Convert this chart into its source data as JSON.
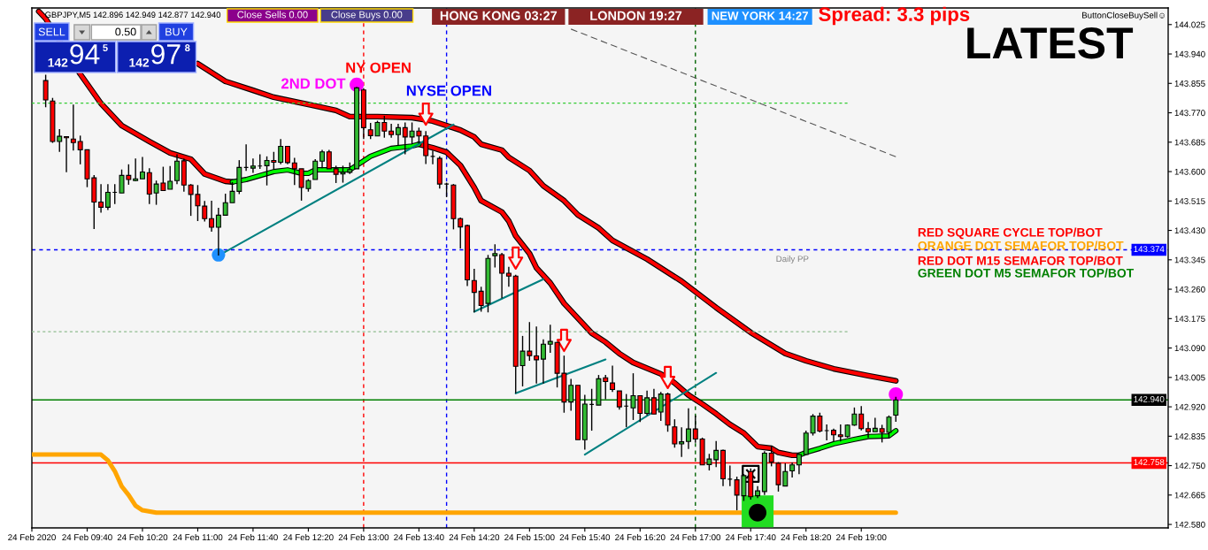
{
  "chart_data": {
    "type": "candlestick",
    "title": "GBPJPY,M5 142.896 142.949 142.877 142.940",
    "x": [
      "2020-02-24T09:10",
      "2020-02-24T09:15",
      "2020-02-24T09:20",
      "2020-02-24T09:25",
      "2020-02-24T09:30",
      "2020-02-24T09:35",
      "2020-02-24T09:40",
      "2020-02-24T09:45",
      "2020-02-24T09:50",
      "2020-02-24T09:55",
      "2020-02-24T10:00",
      "2020-02-24T10:05",
      "2020-02-24T10:10",
      "2020-02-24T10:15",
      "2020-02-24T10:20",
      "2020-02-24T10:25",
      "2020-02-24T10:30",
      "2020-02-24T10:35",
      "2020-02-24T10:40",
      "2020-02-24T10:45",
      "2020-02-24T10:50",
      "2020-02-24T10:55",
      "2020-02-24T11:00",
      "2020-02-24T11:05",
      "2020-02-24T11:10",
      "2020-02-24T11:15",
      "2020-02-24T11:20",
      "2020-02-24T11:25",
      "2020-02-24T11:30",
      "2020-02-24T11:35",
      "2020-02-24T11:40",
      "2020-02-24T11:45",
      "2020-02-24T11:50",
      "2020-02-24T11:55",
      "2020-02-24T12:00",
      "2020-02-24T12:05",
      "2020-02-24T12:10",
      "2020-02-24T12:15",
      "2020-02-24T12:20",
      "2020-02-24T12:25",
      "2020-02-24T12:30",
      "2020-02-24T12:35",
      "2020-02-24T12:40",
      "2020-02-24T12:45",
      "2020-02-24T12:50",
      "2020-02-24T12:55",
      "2020-02-24T13:00",
      "2020-02-24T13:05",
      "2020-02-24T13:10",
      "2020-02-24T13:15",
      "2020-02-24T13:20",
      "2020-02-24T13:25",
      "2020-02-24T13:30",
      "2020-02-24T13:35",
      "2020-02-24T13:40",
      "2020-02-24T13:45",
      "2020-02-24T13:50",
      "2020-02-24T13:55",
      "2020-02-24T14:00",
      "2020-02-24T14:05",
      "2020-02-24T14:10",
      "2020-02-24T14:15",
      "2020-02-24T14:20",
      "2020-02-24T14:25",
      "2020-02-24T14:30",
      "2020-02-24T14:35",
      "2020-02-24T14:40",
      "2020-02-24T14:45",
      "2020-02-24T14:50",
      "2020-02-24T14:55",
      "2020-02-24T15:00",
      "2020-02-24T15:05",
      "2020-02-24T15:10",
      "2020-02-24T15:15",
      "2020-02-24T15:20",
      "2020-02-24T15:25",
      "2020-02-24T15:30",
      "2020-02-24T15:35",
      "2020-02-24T15:40",
      "2020-02-24T15:45",
      "2020-02-24T15:50",
      "2020-02-24T15:55",
      "2020-02-24T16:00",
      "2020-02-24T16:05",
      "2020-02-24T16:10",
      "2020-02-24T16:15",
      "2020-02-24T16:20",
      "2020-02-24T16:25",
      "2020-02-24T16:30",
      "2020-02-24T16:35",
      "2020-02-24T16:40",
      "2020-02-24T16:45",
      "2020-02-24T16:50",
      "2020-02-24T16:55",
      "2020-02-24T17:00",
      "2020-02-24T17:05",
      "2020-02-24T17:10",
      "2020-02-24T17:15",
      "2020-02-24T17:20",
      "2020-02-24T17:25",
      "2020-02-24T17:30",
      "2020-02-24T17:35",
      "2020-02-24T17:40",
      "2020-02-24T17:45",
      "2020-02-24T17:50",
      "2020-02-24T17:55",
      "2020-02-24T18:00",
      "2020-02-24T18:05",
      "2020-02-24T18:10",
      "2020-02-24T18:15",
      "2020-02-24T18:20",
      "2020-02-24T18:25",
      "2020-02-24T18:30",
      "2020-02-24T18:35",
      "2020-02-24T18:40",
      "2020-02-24T18:45",
      "2020-02-24T18:50",
      "2020-02-24T18:55",
      "2020-02-24T19:00",
      "2020-02-24T19:05",
      "2020-02-24T19:10",
      "2020-02-24T19:15",
      "2020-02-24T19:20",
      "2020-02-24T19:25"
    ],
    "ohlc": [
      [
        143.863,
        143.88,
        143.786,
        143.807
      ],
      [
        143.804,
        143.813,
        143.683,
        143.687
      ],
      [
        143.687,
        143.723,
        143.657,
        143.702
      ],
      [
        143.701,
        143.702,
        143.598,
        143.698
      ],
      [
        143.694,
        143.794,
        143.661,
        143.684
      ],
      [
        143.687,
        143.704,
        143.621,
        143.663
      ],
      [
        143.663,
        143.663,
        143.555,
        143.579
      ],
      [
        143.582,
        143.59,
        143.434,
        143.512
      ],
      [
        143.512,
        143.564,
        143.481,
        143.497
      ],
      [
        143.497,
        143.564,
        143.489,
        143.54
      ],
      [
        143.54,
        143.564,
        143.506,
        143.54
      ],
      [
        143.538,
        143.606,
        143.538,
        143.589
      ],
      [
        143.589,
        143.621,
        143.562,
        143.577
      ],
      [
        143.574,
        143.638,
        143.572,
        143.579
      ],
      [
        143.579,
        143.642,
        143.579,
        143.599
      ],
      [
        143.597,
        143.61,
        143.506,
        143.535
      ],
      [
        143.538,
        143.574,
        143.504,
        143.564
      ],
      [
        143.567,
        143.614,
        143.545,
        143.545
      ],
      [
        143.549,
        143.616,
        143.549,
        143.572
      ],
      [
        143.574,
        143.65,
        143.564,
        143.63
      ],
      [
        143.631,
        143.638,
        143.542,
        143.561
      ],
      [
        143.561,
        143.564,
        143.472,
        143.534
      ],
      [
        143.534,
        143.561,
        143.457,
        143.501
      ],
      [
        143.5,
        143.515,
        143.456,
        143.464
      ],
      [
        143.464,
        143.516,
        143.426,
        143.439
      ],
      [
        143.439,
        143.495,
        143.357,
        143.474
      ],
      [
        143.474,
        143.536,
        143.474,
        143.51
      ],
      [
        143.51,
        143.57,
        143.51,
        143.543
      ],
      [
        143.543,
        143.633,
        143.535,
        143.612
      ],
      [
        143.612,
        143.679,
        143.602,
        143.612
      ],
      [
        143.61,
        143.638,
        143.596,
        143.616
      ],
      [
        143.616,
        143.65,
        143.608,
        143.616
      ],
      [
        143.617,
        143.644,
        143.56,
        143.632
      ],
      [
        143.632,
        143.657,
        143.606,
        143.627
      ],
      [
        143.627,
        143.694,
        143.621,
        143.673
      ],
      [
        143.673,
        143.673,
        143.621,
        143.626
      ],
      [
        143.625,
        143.64,
        143.561,
        143.608
      ],
      [
        143.608,
        143.608,
        143.516,
        143.554
      ],
      [
        143.551,
        143.578,
        143.542,
        143.574
      ],
      [
        143.577,
        143.636,
        143.577,
        143.63
      ],
      [
        143.63,
        143.663,
        143.61,
        143.657
      ],
      [
        143.657,
        143.663,
        143.608,
        143.608
      ],
      [
        143.608,
        143.617,
        143.567,
        143.592
      ],
      [
        143.593,
        143.617,
        143.568,
        143.598
      ],
      [
        143.598,
        143.626,
        143.593,
        143.606
      ],
      [
        143.608,
        143.845,
        143.608,
        143.842
      ],
      [
        143.836,
        143.841,
        143.694,
        143.727
      ],
      [
        143.721,
        143.741,
        143.694,
        143.704
      ],
      [
        143.703,
        143.747,
        143.703,
        143.742
      ],
      [
        143.742,
        143.761,
        143.698,
        143.717
      ],
      [
        143.717,
        143.738,
        143.698,
        143.707
      ],
      [
        143.707,
        143.738,
        143.677,
        143.727
      ],
      [
        143.727,
        143.742,
        143.65,
        143.7
      ],
      [
        143.7,
        143.742,
        143.679,
        143.717
      ],
      [
        143.717,
        143.727,
        143.681,
        143.703
      ],
      [
        143.703,
        143.717,
        143.622,
        143.646
      ],
      [
        143.644,
        143.661,
        143.621,
        143.644
      ],
      [
        143.638,
        143.644,
        143.551,
        143.564
      ],
      [
        143.564,
        143.568,
        143.526,
        143.564
      ],
      [
        143.561,
        143.564,
        143.433,
        143.464
      ],
      [
        143.464,
        143.467,
        143.378,
        143.44
      ],
      [
        143.444,
        143.447,
        143.269,
        143.287
      ],
      [
        143.285,
        143.319,
        143.193,
        143.251
      ],
      [
        143.254,
        143.267,
        143.195,
        143.213
      ],
      [
        143.219,
        143.359,
        143.193,
        143.349
      ],
      [
        143.357,
        143.39,
        143.323,
        143.363
      ],
      [
        143.36,
        143.365,
        143.234,
        143.306
      ],
      [
        143.306,
        143.325,
        143.267,
        143.298
      ],
      [
        143.298,
        143.302,
        142.959,
        143.037
      ],
      [
        143.039,
        143.125,
        142.979,
        143.081
      ],
      [
        143.081,
        143.165,
        143.053,
        143.068
      ],
      [
        143.067,
        143.152,
        142.987,
        143.056
      ],
      [
        143.058,
        143.115,
        142.987,
        143.101
      ],
      [
        143.101,
        143.157,
        143.076,
        143.109
      ],
      [
        143.106,
        143.108,
        142.976,
        143.017
      ],
      [
        143.017,
        143.068,
        142.903,
        142.934
      ],
      [
        142.934,
        143.001,
        142.909,
        142.982
      ],
      [
        142.982,
        142.982,
        142.825,
        142.825
      ],
      [
        142.825,
        142.955,
        142.796,
        142.928
      ],
      [
        142.927,
        142.972,
        142.851,
        142.927
      ],
      [
        142.925,
        143.012,
        142.925,
        143.001
      ],
      [
        143.004,
        143.012,
        142.942,
        142.993
      ],
      [
        142.989,
        143.039,
        142.963,
        142.97
      ],
      [
        142.966,
        142.966,
        142.912,
        142.92
      ],
      [
        142.922,
        142.957,
        142.861,
        142.922
      ],
      [
        142.917,
        143.017,
        142.882,
        142.952
      ],
      [
        142.952,
        142.952,
        142.876,
        142.901
      ],
      [
        142.901,
        142.967,
        142.895,
        142.946
      ],
      [
        142.946,
        142.972,
        142.899,
        142.899
      ],
      [
        142.905,
        142.963,
        142.879,
        142.957
      ],
      [
        142.957,
        142.961,
        142.848,
        142.867
      ],
      [
        142.862,
        142.884,
        142.802,
        142.813
      ],
      [
        142.813,
        142.861,
        142.775,
        142.819
      ],
      [
        142.82,
        142.916,
        142.798,
        142.856
      ],
      [
        142.856,
        142.895,
        142.816,
        142.827
      ],
      [
        142.827,
        142.831,
        142.752,
        142.752
      ],
      [
        142.753,
        142.784,
        142.736,
        142.769
      ],
      [
        142.767,
        142.821,
        142.746,
        142.794
      ],
      [
        142.794,
        142.796,
        142.691,
        142.712
      ],
      [
        142.711,
        142.75,
        142.691,
        142.711
      ],
      [
        142.709,
        142.718,
        142.621,
        142.665
      ],
      [
        142.663,
        142.726,
        142.648,
        142.721
      ],
      [
        142.733,
        142.742,
        142.652,
        142.66
      ],
      [
        142.663,
        142.691,
        142.656,
        142.677
      ],
      [
        142.675,
        142.792,
        142.665,
        142.786
      ],
      [
        142.786,
        142.808,
        142.748,
        142.76
      ],
      [
        142.757,
        142.76,
        142.675,
        142.695
      ],
      [
        142.691,
        142.757,
        142.691,
        142.733
      ],
      [
        142.735,
        142.759,
        142.716,
        142.752
      ],
      [
        142.752,
        142.785,
        142.725,
        142.782
      ],
      [
        142.782,
        142.851,
        142.782,
        142.844
      ],
      [
        142.844,
        142.899,
        142.837,
        142.893
      ],
      [
        142.893,
        142.903,
        142.846,
        142.85
      ],
      [
        142.851,
        142.869,
        142.823,
        142.851
      ],
      [
        142.852,
        142.857,
        142.82,
        142.839
      ],
      [
        142.839,
        142.869,
        142.82,
        142.834
      ],
      [
        142.834,
        142.869,
        142.831,
        142.867
      ],
      [
        142.867,
        142.918,
        142.865,
        142.899
      ],
      [
        142.899,
        142.922,
        142.852,
        142.857
      ],
      [
        142.857,
        142.876,
        142.831,
        142.848
      ],
      [
        142.848,
        142.888,
        142.848,
        142.858
      ],
      [
        142.857,
        142.868,
        142.817,
        142.846
      ],
      [
        142.846,
        142.895,
        142.831,
        142.89
      ],
      [
        142.896,
        142.949,
        142.877,
        142.94
      ]
    ],
    "colors": [
      "#ff0000",
      "#ff0000",
      "#33bb33",
      "#ff0000",
      "#ff0000",
      "#ff0000",
      "#ff0000",
      "#ff0000",
      "#ff0000",
      "#33bb33",
      "#000000",
      "#33bb33",
      "#ff0000",
      "#33bb33",
      "#33bb33",
      "#ff0000",
      "#33bb33",
      "#ff0000",
      "#33bb33",
      "#33bb33",
      "#ff0000",
      "#ff0000",
      "#ff0000",
      "#ff0000",
      "#ff0000",
      "#33bb33",
      "#33bb33",
      "#33bb33",
      "#33bb33",
      "#000000",
      "#33bb33",
      "#000000",
      "#33bb33",
      "#ff0000",
      "#33bb33",
      "#ff0000",
      "#ff0000",
      "#ff0000",
      "#33bb33",
      "#33bb33",
      "#33bb33",
      "#ff0000",
      "#ff0000",
      "#33bb33",
      "#33bb33",
      "#33bb33",
      "#ff0000",
      "#ff0000",
      "#33bb33",
      "#ff0000",
      "#ff0000",
      "#33bb33",
      "#ff0000",
      "#33bb33",
      "#ff0000",
      "#ff0000",
      "#000000",
      "#ff0000",
      "#000000",
      "#ff0000",
      "#ff0000",
      "#ff0000",
      "#ff0000",
      "#ff0000",
      "#33bb33",
      "#33bb33",
      "#ff0000",
      "#ff0000",
      "#ff0000",
      "#33bb33",
      "#ff0000",
      "#ff0000",
      "#33bb33",
      "#33bb33",
      "#ff0000",
      "#ff0000",
      "#33bb33",
      "#ff0000",
      "#33bb33",
      "#000000",
      "#33bb33",
      "#ff0000",
      "#ff0000",
      "#ff0000",
      "#000000",
      "#33bb33",
      "#ff0000",
      "#33bb33",
      "#ff0000",
      "#33bb33",
      "#ff0000",
      "#ff0000",
      "#33bb33",
      "#33bb33",
      "#ff0000",
      "#ff0000",
      "#33bb33",
      "#33bb33",
      "#ff0000",
      "#000000",
      "#ff0000",
      "#33bb33",
      "#ff0000",
      "#33bb33",
      "#33bb33",
      "#ff0000",
      "#ff0000",
      "#33bb33",
      "#33bb33",
      "#33bb33",
      "#33bb33",
      "#33bb33",
      "#ff0000",
      "#000000",
      "#ff0000",
      "#ff0000",
      "#33bb33",
      "#33bb33",
      "#ff0000",
      "#ff0000",
      "#33bb33",
      "#ff0000",
      "#33bb33",
      "#33bb33"
    ],
    "series": [
      {
        "type": "line",
        "color": "#ff0000",
        "x": [
          "2020-02-24T11:00",
          "2020-02-24T11:20",
          "2020-02-24T11:40",
          "2020-02-24T11:55",
          "2020-02-24T12:20",
          "2020-02-24T12:40",
          "2020-02-24T12:50",
          "2020-02-24T13:10",
          "2020-02-24T13:35",
          "2020-02-24T13:50",
          "2020-02-24T14:00",
          "2020-02-24T14:10",
          "2020-02-24T14:20",
          "2020-02-24T14:25",
          "2020-02-24T14:40",
          "2020-02-24T14:45",
          "2020-02-24T15:00",
          "2020-02-24T15:10",
          "2020-02-24T15:25",
          "2020-02-24T15:35",
          "2020-02-24T15:50",
          "2020-02-24T16:00",
          "2020-02-24T16:25",
          "2020-02-24T16:50",
          "2020-02-24T17:15",
          "2020-02-24T17:40",
          "2020-02-24T18:05",
          "2020-02-24T18:20",
          "2020-02-24T18:40",
          "2020-02-24T19:05",
          "2020-02-24T19:25"
        ],
        "values": [
          143.912,
          143.861,
          143.835,
          143.815,
          143.794,
          143.777,
          143.759,
          143.759,
          143.756,
          143.746,
          143.733,
          143.72,
          143.7,
          143.679,
          143.662,
          143.641,
          143.603,
          143.559,
          143.516,
          143.475,
          143.437,
          143.401,
          143.347,
          143.283,
          143.207,
          143.135,
          143.074,
          143.053,
          143.03,
          143.01,
          142.995
        ]
      },
      {
        "type": "line",
        "color": "#ff0000",
        "x": [
          "2020-02-24T09:05",
          "2020-02-24T09:10",
          "2020-02-24T09:35",
          "2020-02-24T09:50",
          "2020-02-24T10:05",
          "2020-02-24T10:25",
          "2020-02-24T10:40",
          "2020-02-24T10:55",
          "2020-02-24T11:05",
          "2020-02-24T11:20",
          "2020-02-24T11:25",
          "2020-02-24T11:30",
          "2020-02-24T13:40",
          "2020-02-24T13:50",
          "2020-02-24T14:00",
          "2020-02-24T14:10",
          "2020-02-24T14:20",
          "2020-02-24T14:25",
          "2020-02-24T14:40",
          "2020-02-24T14:45",
          "2020-02-24T14:50",
          "2020-02-24T15:00",
          "2020-02-24T15:05",
          "2020-02-24T15:15",
          "2020-02-24T15:25",
          "2020-02-24T15:35",
          "2020-02-24T15:45",
          "2020-02-24T15:55",
          "2020-02-24T16:05",
          "2020-02-24T16:15",
          "2020-02-24T16:35",
          "2020-02-24T16:45",
          "2020-02-24T16:55",
          "2020-02-24T17:05",
          "2020-02-24T17:15",
          "2020-02-24T17:25",
          "2020-02-24T17:35",
          "2020-02-24T17:45",
          "2020-02-24T17:55",
          "2020-02-24T18:00",
          "2020-02-24T18:10",
          "2020-02-24T18:15"
        ],
        "values": [
          144.063,
          144.042,
          143.882,
          143.797,
          143.733,
          143.687,
          143.654,
          143.636,
          143.593,
          143.572,
          143.57,
          null,
          143.679,
          143.669,
          143.656,
          143.618,
          143.554,
          143.516,
          143.483,
          143.457,
          143.414,
          143.363,
          143.322,
          143.278,
          143.219,
          143.176,
          143.133,
          143.107,
          143.074,
          143.048,
          143.015,
          142.989,
          142.954,
          142.928,
          142.9,
          142.869,
          142.844,
          142.805,
          142.8,
          142.788,
          142.78,
          142.78
        ]
      },
      {
        "type": "line",
        "color": "#00ff00",
        "x": [
          "2020-02-24T11:25",
          "2020-02-24T11:35",
          "2020-02-24T11:55",
          "2020-02-24T12:05",
          "2020-02-24T12:10",
          "2020-02-24T12:15",
          "2020-02-24T12:20",
          "2020-02-24T12:25",
          "2020-02-24T12:50",
          "2020-02-24T12:55",
          "2020-02-24T13:05",
          "2020-02-24T13:20",
          "2020-02-24T13:35",
          "2020-02-24T13:40",
          "2020-02-24T13:45",
          "2020-02-24T18:15",
          "2020-02-24T18:20",
          "2020-02-24T18:30",
          "2020-02-24T18:40",
          "2020-02-24T18:55",
          "2020-02-24T19:05",
          "2020-02-24T19:20",
          "2020-02-24T19:25"
        ],
        "values": [
          143.57,
          143.577,
          143.6,
          143.605,
          143.6,
          143.595,
          143.595,
          143.605,
          143.605,
          143.618,
          143.644,
          143.667,
          143.674,
          143.679,
          null,
          142.78,
          142.788,
          142.8,
          142.813,
          142.826,
          142.834,
          142.836,
          142.851
        ]
      },
      {
        "type": "line",
        "color": "#ffa500",
        "x": [
          "2020-02-24T09:00",
          "2020-02-24T09:50",
          "2020-02-24T09:55",
          "2020-02-24T10:00",
          "2020-02-24T10:05",
          "2020-02-24T10:10",
          "2020-02-24T10:15",
          "2020-02-24T10:20",
          "2020-02-24T10:30",
          "2020-02-24T19:25"
        ],
        "values": [
          142.782,
          142.782,
          142.765,
          142.734,
          142.69,
          142.665,
          142.634,
          142.621,
          142.614,
          142.614
        ]
      },
      {
        "type": "line",
        "color": "#008080",
        "x": [
          "2020-02-24T11:15",
          "2020-02-24T14:05"
        ],
        "values": [
          143.357,
          143.736
        ]
      },
      {
        "type": "line",
        "color": "#008080",
        "x": [
          "2020-02-24T14:20",
          "2020-02-24T15:10"
        ],
        "values": [
          143.195,
          143.289
        ]
      },
      {
        "type": "line",
        "color": "#008080",
        "x": [
          "2020-02-24T14:50",
          "2020-02-24T15:55"
        ],
        "values": [
          142.959,
          143.057
        ]
      },
      {
        "type": "line",
        "color": "#008080",
        "x": [
          "2020-02-24T15:40",
          "2020-02-24T17:15"
        ],
        "values": [
          142.782,
          143.018
        ]
      },
      {
        "type": "line",
        "color": "#33cc33",
        "line_style": "dotted",
        "x": [
          "2020-02-24T09:00",
          "2020-02-24T18:50"
        ],
        "values": [
          143.798,
          143.798
        ]
      },
      {
        "type": "line",
        "color": "#8fbc8f",
        "line_style": "dotted",
        "x": [
          "2020-02-24T09:00",
          "2020-02-24T18:50"
        ],
        "values": [
          143.137,
          143.137
        ]
      },
      {
        "type": "line",
        "color": "#555555",
        "line_style": "dashed",
        "x": [
          "2020-02-24T15:30",
          "2020-02-24T19:25"
        ],
        "values": [
          144.012,
          143.643
        ]
      },
      {
        "type": "scatter",
        "marker": "square",
        "color": "#22dd22",
        "x": [
          "2020-02-24T17:45"
        ],
        "values": [
          142.618
        ]
      },
      {
        "type": "scatter",
        "marker": "circle",
        "color": "#000000",
        "x": [
          "2020-02-24T17:45"
        ],
        "values": [
          142.614
        ]
      },
      {
        "type": "scatter",
        "marker": "circle",
        "color": "#ff00ff",
        "x": [
          "2020-02-24T12:55",
          "2020-02-24T19:25"
        ],
        "values": [
          143.851,
          142.956
        ]
      },
      {
        "type": "scatter",
        "marker": "circle",
        "color": "#1e90ff",
        "x": [
          "2020-02-24T11:15"
        ],
        "values": [
          143.359
        ]
      },
      {
        "type": "scatter",
        "marker": "triangle",
        "color": "#ff0000",
        "x": [
          "2020-02-24T13:45",
          "2020-02-24T14:50",
          "2020-02-24T15:25",
          "2020-02-24T16:40"
        ],
        "values": [
          143.766,
          143.35,
          143.112,
          143.005
        ]
      },
      {
        "type": "scatter",
        "marker": "cross",
        "color": "#000000",
        "x": [
          "2020-02-24T17:40"
        ],
        "values": [
          142.726
        ]
      }
    ],
    "xlim": [
      "2020-02-24T09:00",
      "2020-02-24T22:42"
    ],
    "xticks": [
      {
        "value": "2020-02-24T09:00",
        "label": "24 Feb 2020"
      },
      {
        "value": "2020-02-24T09:40",
        "label": "24 Feb 09:40"
      },
      {
        "value": "2020-02-24T10:20",
        "label": "24 Feb 10:20"
      },
      {
        "value": "2020-02-24T11:00",
        "label": "24 Feb 11:00"
      },
      {
        "value": "2020-02-24T11:40",
        "label": "24 Feb 11:40"
      },
      {
        "value": "2020-02-24T12:20",
        "label": "24 Feb 12:20"
      },
      {
        "value": "2020-02-24T13:00",
        "label": "24 Feb 13:00"
      },
      {
        "value": "2020-02-24T13:40",
        "label": "24 Feb 13:40"
      },
      {
        "value": "2020-02-24T14:20",
        "label": "24 Feb 14:20"
      },
      {
        "value": "2020-02-24T15:00",
        "label": "24 Feb 15:00"
      },
      {
        "value": "2020-02-24T15:40",
        "label": "24 Feb 15:40"
      },
      {
        "value": "2020-02-24T16:20",
        "label": "24 Feb 16:20"
      },
      {
        "value": "2020-02-24T17:00",
        "label": "24 Feb 17:00"
      },
      {
        "value": "2020-02-24T17:40",
        "label": "24 Feb 17:40"
      },
      {
        "value": "2020-02-24T18:20",
        "label": "24 Feb 18:20"
      },
      {
        "value": "2020-02-24T19:00",
        "label": "24 Feb 19:00"
      }
    ],
    "ylim": [
      142.57,
      144.073
    ],
    "yticks": [
      144.025,
      {
        "value": 143.94,
        "label": "143.940"
      },
      143.855,
      {
        "value": 143.77,
        "label": "143.770"
      },
      143.685,
      {
        "value": 143.6,
        "label": "143.600"
      },
      143.515,
      {
        "value": 143.43,
        "label": "143.430"
      },
      143.345,
      {
        "value": 143.26,
        "label": "143.260"
      },
      143.175,
      {
        "value": 143.09,
        "label": "143.090"
      },
      143.005,
      {
        "value": 142.92,
        "label": "142.920"
      },
      142.835,
      {
        "value": 142.75,
        "label": "142.750"
      },
      142.665,
      {
        "value": 142.58,
        "label": "142.580"
      }
    ],
    "ref_lines": [
      {
        "axis": "x",
        "value": "2020-02-24T13:00",
        "label": "NY OPEN",
        "color": "#ff0000",
        "line_style": "dotted"
      },
      {
        "axis": "x",
        "value": "2020-02-24T14:00",
        "label": "NYSE OPEN",
        "color": "#0000ff",
        "line_style": "dotted"
      },
      {
        "axis": "x",
        "value": "2020-02-24T17:00",
        "color": "#006400",
        "line_style": "dotted"
      },
      {
        "axis": "y",
        "value": 143.374,
        "label": "Daily PP",
        "color": "#0000ff",
        "line_style": "dotted"
      },
      {
        "axis": "y",
        "value": 142.94,
        "color": "#008000"
      },
      {
        "axis": "y",
        "value": 142.758,
        "color": "#ff0000"
      }
    ],
    "annotations": [
      "Close Sells 0.00",
      "Close Buys 0.00",
      "HONG KONG 03:27",
      "LONDON 19:27",
      "NEW YORK 14:27",
      "Spread: 3.3 pips",
      "ButtonCloseBuySell☺",
      "LATEST",
      "RED SQUARE CYCLE TOP/BOT",
      "ORANGE DOT SEMAFOR TOP/BOT",
      "RED DOT M15 SEMAFOR TOP/BOT",
      "GREEN DOT M5 SEMAFOR TOP/BOT",
      "SELL",
      "0.50",
      "BUY",
      "142",
      "94",
      "5",
      "142",
      "97",
      "8",
      {
        "text": "2ND DOT",
        "x": "2020-02-24T12:55",
        "y": 143.851
      },
      {
        "text": "143.374",
        "x": "2020-02-24T22:42",
        "y": 143.374
      },
      {
        "text": "142.940",
        "x": "2020-02-24T22:42",
        "y": 142.94
      },
      {
        "text": "142.758",
        "x": "2020-02-24T22:42",
        "y": 142.758
      }
    ]
  }
}
